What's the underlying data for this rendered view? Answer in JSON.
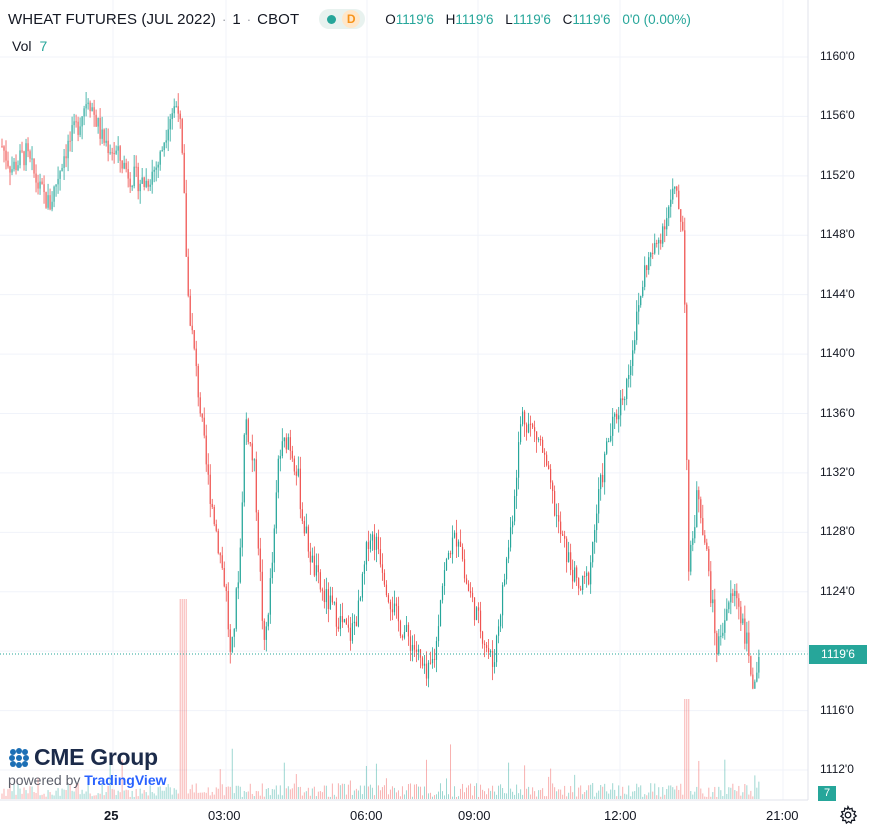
{
  "header": {
    "symbol": "WHEAT FUTURES (JUL 2022)",
    "interval": "1",
    "exchange": "CBOT",
    "separator": "·",
    "delayed_badge": "D",
    "ohlc": {
      "o_label": "O",
      "o_value": "1119'6",
      "h_label": "H",
      "h_value": "1119'6",
      "l_label": "L",
      "l_value": "1119'6",
      "c_label": "C",
      "c_value": "1119'6",
      "change": "0'0 (0.00%)"
    }
  },
  "volume": {
    "label": "Vol",
    "value": "7",
    "tag": "7"
  },
  "branding": {
    "main": "CME Group",
    "powered": "powered by",
    "tv": "TradingView"
  },
  "price_axis": {
    "ticks": [
      "1160'0",
      "1156'0",
      "1152'0",
      "1148'0",
      "1144'0",
      "1140'0",
      "1136'0",
      "1132'0",
      "1128'0",
      "1124'0",
      "1116'0",
      "1112'0"
    ],
    "last_price": "1119'6"
  },
  "time_axis": {
    "ticks": [
      "25",
      "03:00",
      "06:00",
      "09:00",
      "12:00",
      "21:00"
    ]
  },
  "colors": {
    "up": "#26a69a",
    "down": "#ef5350",
    "grid": "#f0f3fa",
    "accent": "#26a69a"
  },
  "icons": {
    "settings": "gear-icon",
    "realtime": "green-dot-icon"
  },
  "chart_data": {
    "type": "candlestick",
    "title": "WHEAT FUTURES (JUL 2022)",
    "interval": "1 minute",
    "exchange": "CBOT",
    "ylim": [
      1110,
      1162
    ],
    "y_ticks": [
      1112,
      1116,
      1124,
      1128,
      1132,
      1136,
      1140,
      1144,
      1148,
      1152,
      1156,
      1160
    ],
    "x_ticks": [
      "25",
      "03:00",
      "06:00",
      "09:00",
      "12:00",
      "21:00"
    ],
    "last_price": 1119.75,
    "close_path": [
      {
        "t": 0,
        "p": 1154
      },
      {
        "t": 2,
        "p": 1152.5
      },
      {
        "t": 5,
        "p": 1153.5
      },
      {
        "t": 8,
        "p": 1151
      },
      {
        "t": 10,
        "p": 1150
      },
      {
        "t": 13,
        "p": 1153.5
      },
      {
        "t": 16,
        "p": 1155.5
      },
      {
        "t": 18,
        "p": 1157.5
      },
      {
        "t": 21,
        "p": 1154.5
      },
      {
        "t": 24,
        "p": 1153.5
      },
      {
        "t": 27,
        "p": 1152
      },
      {
        "t": 30,
        "p": 1151.5
      },
      {
        "t": 33,
        "p": 1153
      },
      {
        "t": 35,
        "p": 1156
      },
      {
        "t": 37,
        "p": 1157
      },
      {
        "t": 38,
        "p": 1152
      },
      {
        "t": 39,
        "p": 1144
      },
      {
        "t": 41,
        "p": 1138
      },
      {
        "t": 43,
        "p": 1132
      },
      {
        "t": 45,
        "p": 1128
      },
      {
        "t": 47,
        "p": 1124
      },
      {
        "t": 48,
        "p": 1119
      },
      {
        "t": 50,
        "p": 1127
      },
      {
        "t": 51,
        "p": 1136
      },
      {
        "t": 53,
        "p": 1132
      },
      {
        "t": 55,
        "p": 1120
      },
      {
        "t": 57,
        "p": 1127
      },
      {
        "t": 58,
        "p": 1133
      },
      {
        "t": 60,
        "p": 1134.5
      },
      {
        "t": 62,
        "p": 1132
      },
      {
        "t": 63,
        "p": 1129
      },
      {
        "t": 65,
        "p": 1126
      },
      {
        "t": 67,
        "p": 1124
      },
      {
        "t": 69,
        "p": 1123
      },
      {
        "t": 71,
        "p": 1122
      },
      {
        "t": 73,
        "p": 1121
      },
      {
        "t": 75,
        "p": 1123
      },
      {
        "t": 77,
        "p": 1128
      },
      {
        "t": 79,
        "p": 1127
      },
      {
        "t": 81,
        "p": 1124
      },
      {
        "t": 83,
        "p": 1122
      },
      {
        "t": 85,
        "p": 1121
      },
      {
        "t": 87,
        "p": 1120
      },
      {
        "t": 89,
        "p": 1118
      },
      {
        "t": 91,
        "p": 1120
      },
      {
        "t": 92,
        "p": 1124
      },
      {
        "t": 94,
        "p": 1127
      },
      {
        "t": 96,
        "p": 1128
      },
      {
        "t": 97,
        "p": 1125
      },
      {
        "t": 99,
        "p": 1123
      },
      {
        "t": 101,
        "p": 1121
      },
      {
        "t": 103,
        "p": 1119
      },
      {
        "t": 105,
        "p": 1124
      },
      {
        "t": 107,
        "p": 1129
      },
      {
        "t": 109,
        "p": 1136
      },
      {
        "t": 111,
        "p": 1135
      },
      {
        "t": 113,
        "p": 1134
      },
      {
        "t": 115,
        "p": 1131
      },
      {
        "t": 117,
        "p": 1128
      },
      {
        "t": 119,
        "p": 1126
      },
      {
        "t": 121,
        "p": 1124
      },
      {
        "t": 123,
        "p": 1125
      },
      {
        "t": 125,
        "p": 1130
      },
      {
        "t": 127,
        "p": 1134
      },
      {
        "t": 129,
        "p": 1136
      },
      {
        "t": 131,
        "p": 1138
      },
      {
        "t": 133,
        "p": 1142
      },
      {
        "t": 135,
        "p": 1146
      },
      {
        "t": 137,
        "p": 1147
      },
      {
        "t": 139,
        "p": 1149
      },
      {
        "t": 141,
        "p": 1151
      },
      {
        "t": 143,
        "p": 1148.5
      },
      {
        "t": 144,
        "p": 1125
      },
      {
        "t": 146,
        "p": 1131
      },
      {
        "t": 148,
        "p": 1126
      },
      {
        "t": 150,
        "p": 1120
      },
      {
        "t": 152,
        "p": 1123
      },
      {
        "t": 154,
        "p": 1124
      },
      {
        "t": 156,
        "p": 1121
      },
      {
        "t": 158,
        "p": 1117
      },
      {
        "t": 159,
        "p": 1119.75
      }
    ]
  }
}
